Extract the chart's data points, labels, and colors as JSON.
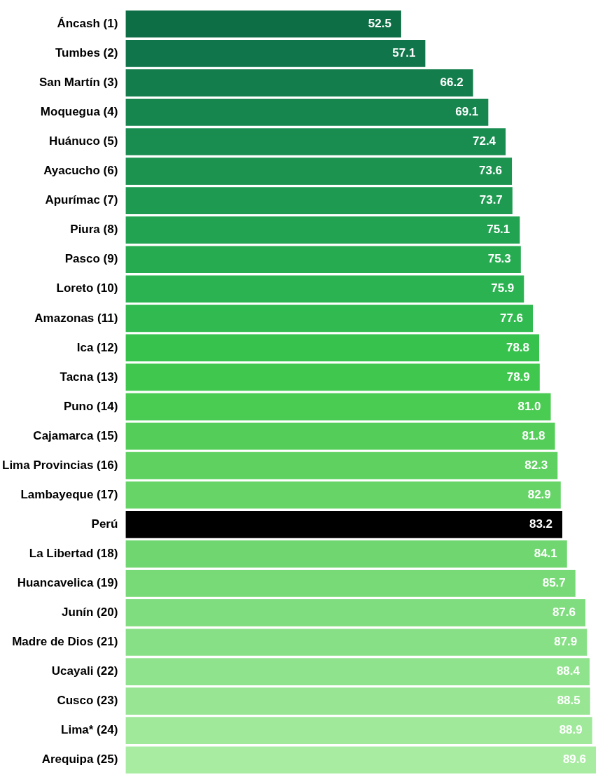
{
  "chart_data": {
    "type": "bar",
    "orientation": "horizontal",
    "legend": false,
    "value_labels": [
      "52.5",
      "57.1",
      "66.2",
      "69.1",
      "72.4",
      "73.6",
      "73.7",
      "75.1",
      "75.3",
      "75.9",
      "77.6",
      "78.8",
      "78.9",
      "81.0",
      "81.8",
      "82.3",
      "82.9",
      "83.2",
      "84.1",
      "85.7",
      "87.6",
      "87.9",
      "88.4",
      "88.5",
      "88.9",
      "89.6"
    ],
    "categories": [
      "Áncash (1)",
      "Tumbes (2)",
      "San Martín (3)",
      "Moquegua (4)",
      "Huánuco (5)",
      "Ayacucho (6)",
      "Apurímac (7)",
      "Piura (8)",
      "Pasco (9)",
      "Loreto (10)",
      "Amazonas (11)",
      "Ica (12)",
      "Tacna (13)",
      "Puno (14)",
      "Cajamarca (15)",
      "Lima Provincias (16)",
      "Lambayeque (17)",
      "Perú",
      "La Libertad (18)",
      "Huancavelica (19)",
      "Junín (20)",
      "Madre de Dios (21)",
      "Ucayali (22)",
      "Cusco (23)",
      "Lima* (24)",
      "Arequipa (25)"
    ],
    "values": [
      52.5,
      57.1,
      66.2,
      69.1,
      72.4,
      73.6,
      73.7,
      75.1,
      75.3,
      75.9,
      77.6,
      78.8,
      78.9,
      81.0,
      81.8,
      82.3,
      82.9,
      83.2,
      84.1,
      85.7,
      87.6,
      87.9,
      88.4,
      88.5,
      88.9,
      89.6
    ],
    "colors": [
      "#0d6e45",
      "#10754a",
      "#137d4c",
      "#16854e",
      "#198c4f",
      "#1c9450",
      "#1f9b51",
      "#22a352",
      "#26ab51",
      "#2ab350",
      "#30ba4f",
      "#37c24e",
      "#3fc84d",
      "#4acb52",
      "#54ce59",
      "#5ed161",
      "#67d468",
      "#000000",
      "#70d770",
      "#78da77",
      "#80dd7f",
      "#88e086",
      "#90e38d",
      "#98e694",
      "#a0e99b",
      "#a8eca2"
    ]
  }
}
